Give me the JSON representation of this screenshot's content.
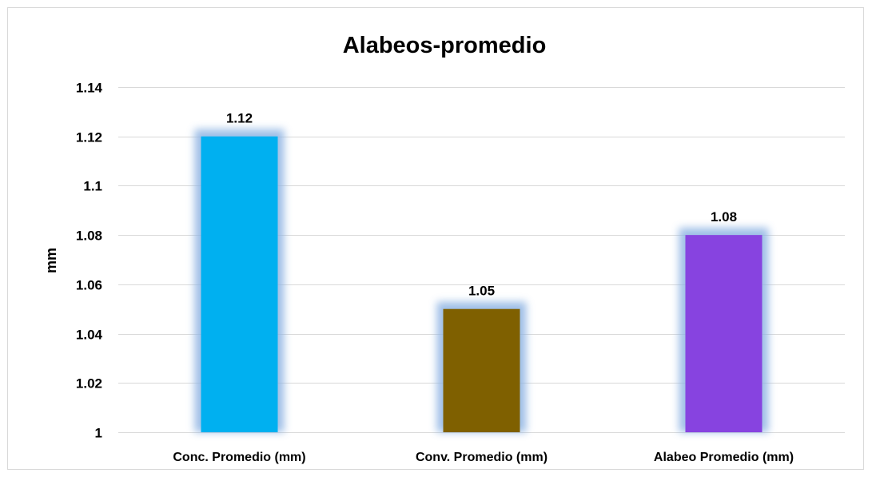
{
  "chart_data": {
    "type": "bar",
    "title": "Alabeos-promedio",
    "xlabel": "",
    "ylabel": "mm",
    "categories": [
      "Conc. Promedio (mm)",
      "Conv. Promedio (mm)",
      "Alabeo Promedio (mm)"
    ],
    "values": [
      1.12,
      1.05,
      1.08
    ],
    "value_labels": [
      "1.12",
      "1.05",
      "1.08"
    ],
    "bar_colors": [
      "#00b0f0",
      "#7f6000",
      "#8743e0"
    ],
    "glow_color": "#8eb4e3",
    "ylim": [
      1,
      1.14
    ],
    "yticks": [
      1,
      1.02,
      1.04,
      1.06,
      1.08,
      1.1,
      1.12,
      1.14
    ],
    "ytick_labels": [
      "1",
      "1.02",
      "1.04",
      "1.06",
      "1.08",
      "1.1",
      "1.12",
      "1.14"
    ],
    "grid": true,
    "legend": "none"
  }
}
